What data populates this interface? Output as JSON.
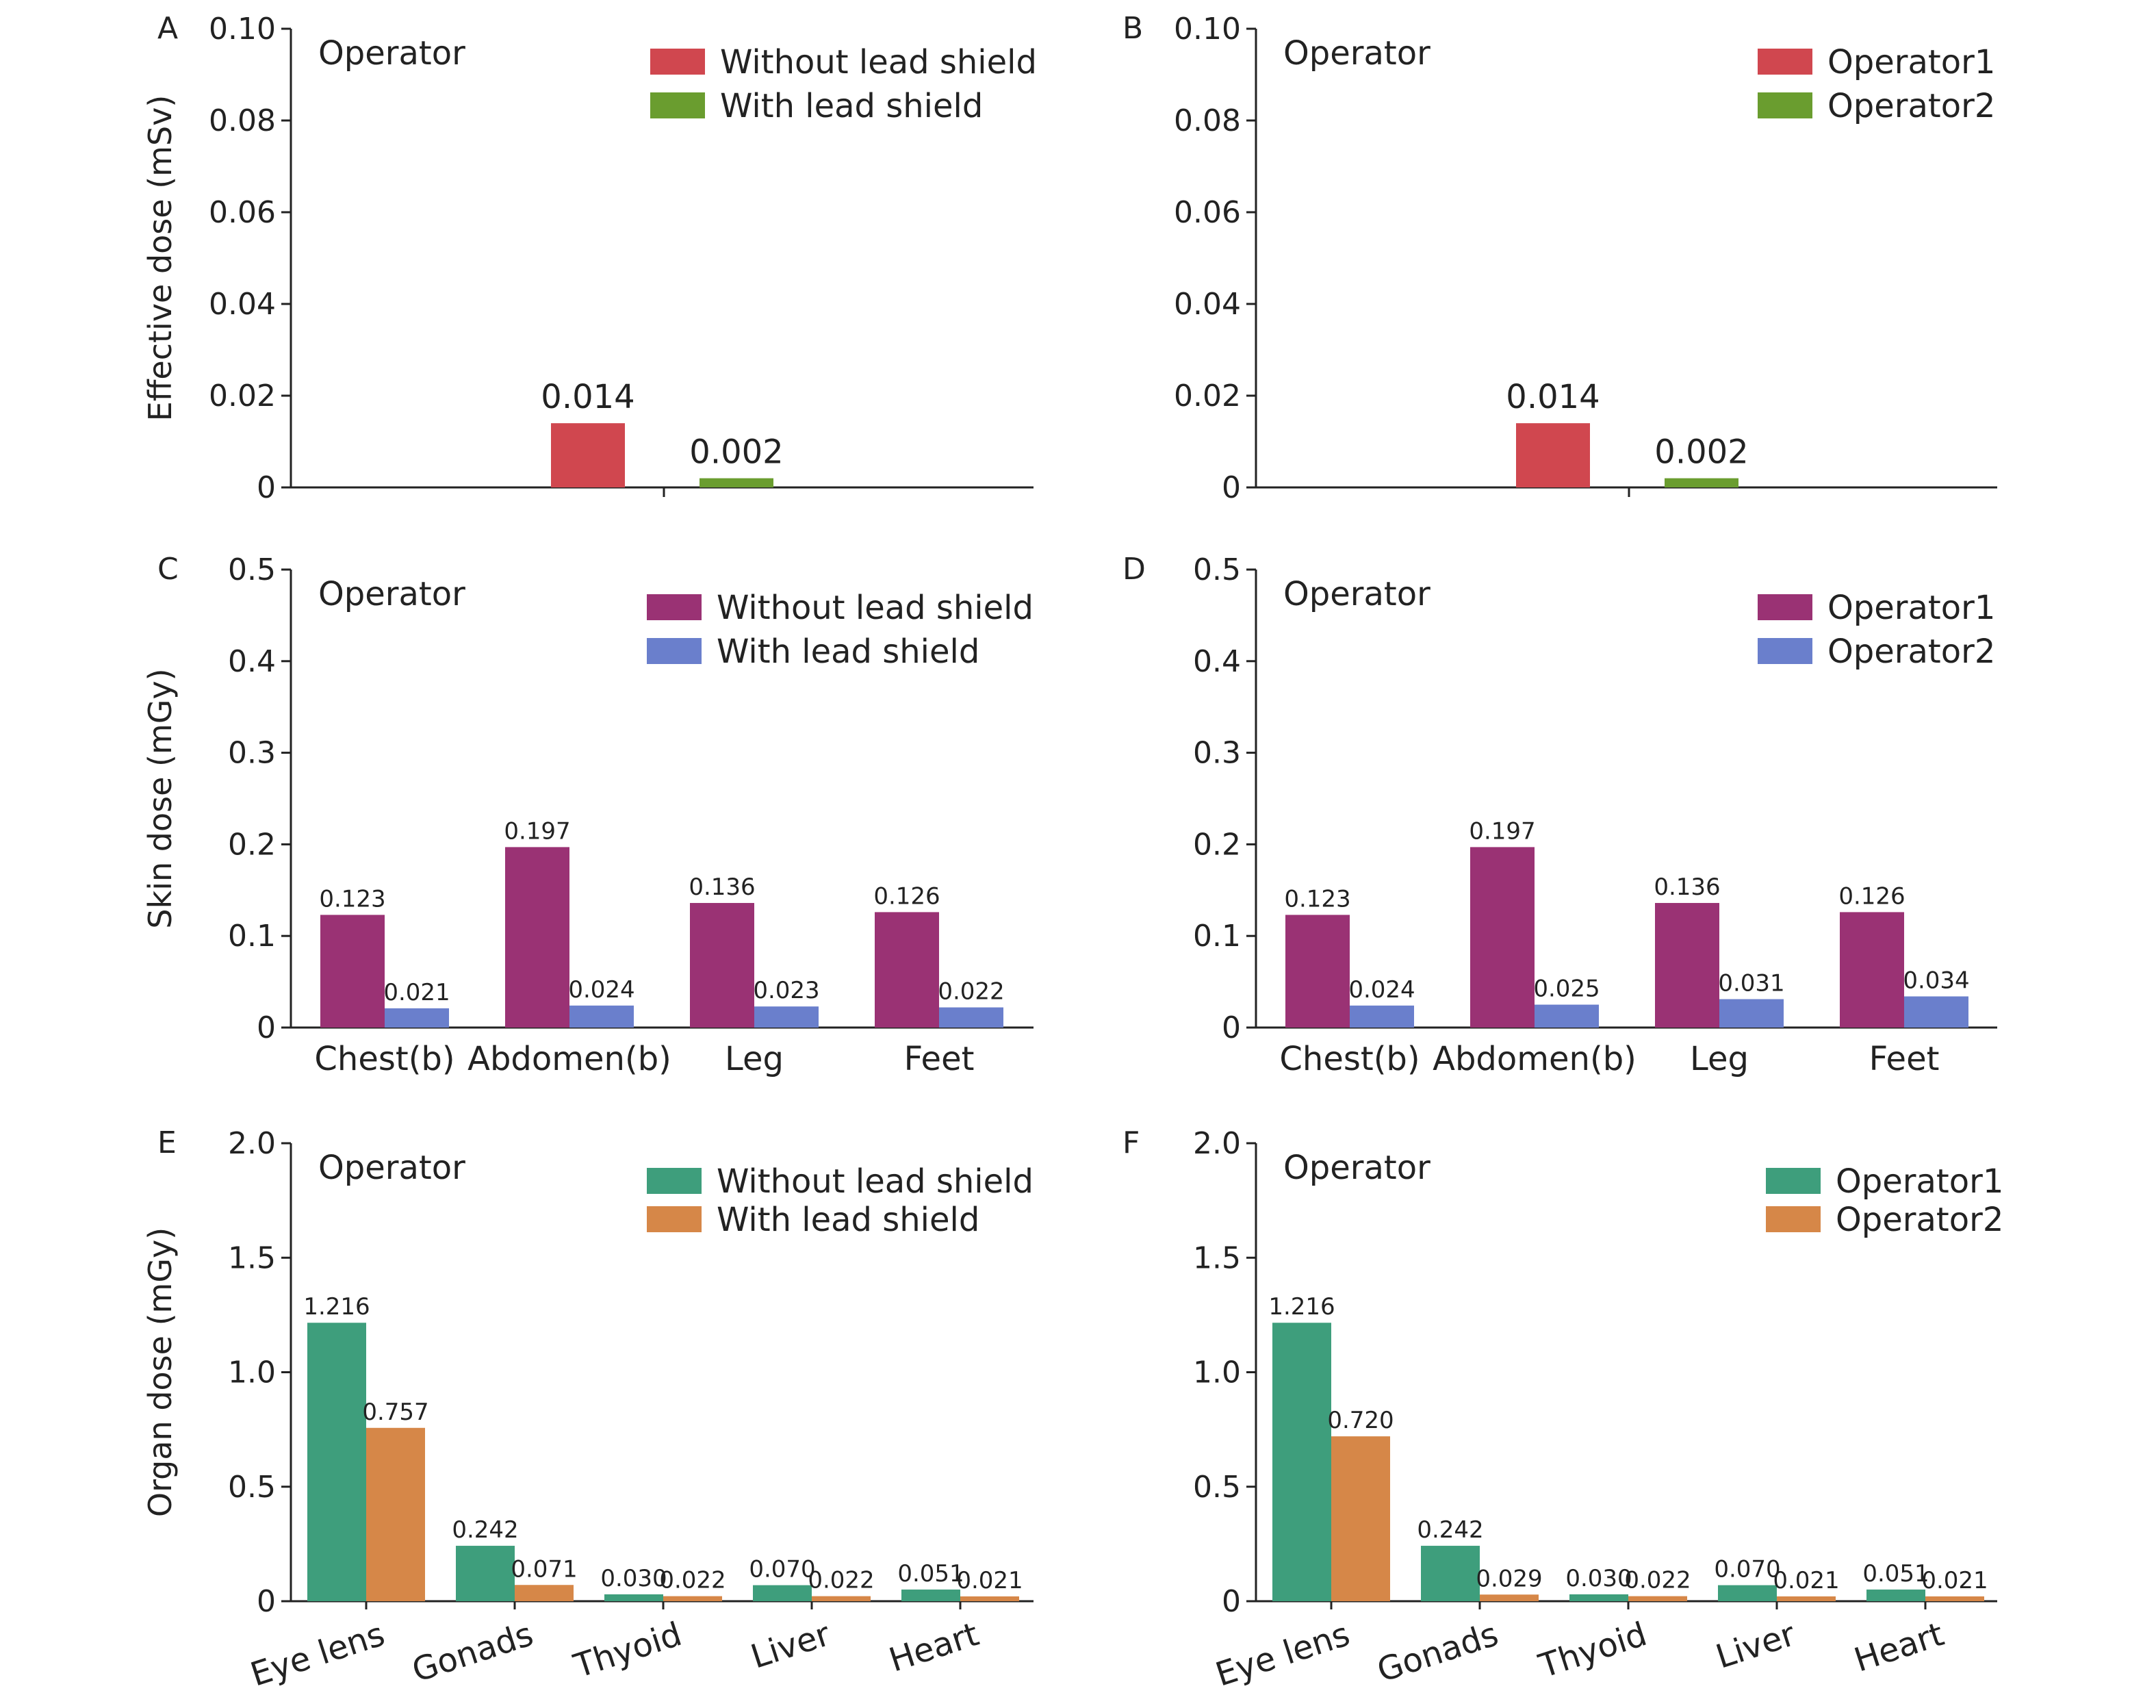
{
  "chart_data": [
    {
      "panel": "A",
      "type": "bar",
      "corner_text": "Operator",
      "ylabel": "Effective dose (mSv)",
      "ylim": [
        0,
        0.1
      ],
      "yticks": [
        "0",
        "0.02",
        "0.04",
        "0.06",
        "0.08",
        "0.10"
      ],
      "categories": [
        ""
      ],
      "series": [
        {
          "name": "Without lead shield",
          "color": "#d0474f",
          "values": [
            0.014
          ],
          "labels": [
            "0.014"
          ]
        },
        {
          "name": "With lead shield",
          "color": "#6a9d2f",
          "values": [
            0.002
          ],
          "labels": [
            "0.002"
          ]
        }
      ]
    },
    {
      "panel": "B",
      "type": "bar",
      "corner_text": "Operator",
      "ylabel": "",
      "ylim": [
        0,
        0.1
      ],
      "yticks": [
        "0",
        "0.02",
        "0.04",
        "0.06",
        "0.08",
        "0.10"
      ],
      "categories": [
        ""
      ],
      "series": [
        {
          "name": "Operator1",
          "color": "#d0474f",
          "values": [
            0.014
          ],
          "labels": [
            "0.014"
          ]
        },
        {
          "name": "Operator2",
          "color": "#6a9d2f",
          "values": [
            0.002
          ],
          "labels": [
            "0.002"
          ]
        }
      ]
    },
    {
      "panel": "C",
      "type": "bar",
      "corner_text": "Operator",
      "ylabel": "Skin dose (mGy)",
      "ylim": [
        0,
        0.5
      ],
      "yticks": [
        "0",
        "0.1",
        "0.2",
        "0.3",
        "0.4",
        "0.5"
      ],
      "categories": [
        "Chest(b)",
        "Abdomen(b)",
        "Leg",
        "Feet"
      ],
      "series": [
        {
          "name": "Without lead shield",
          "color": "#9a3274",
          "values": [
            0.123,
            0.197,
            0.136,
            0.126
          ],
          "labels": [
            "0.123",
            "0.197",
            "0.136",
            "0.126"
          ]
        },
        {
          "name": "With lead shield",
          "color": "#6a7fcc",
          "values": [
            0.021,
            0.024,
            0.023,
            0.022
          ],
          "labels": [
            "0.021",
            "0.024",
            "0.023",
            "0.022"
          ]
        }
      ]
    },
    {
      "panel": "D",
      "type": "bar",
      "corner_text": "Operator",
      "ylabel": "",
      "ylim": [
        0,
        0.5
      ],
      "yticks": [
        "0",
        "0.1",
        "0.2",
        "0.3",
        "0.4",
        "0.5"
      ],
      "categories": [
        "Chest(b)",
        "Abdomen(b)",
        "Leg",
        "Feet"
      ],
      "series": [
        {
          "name": "Operator1",
          "color": "#9a3274",
          "values": [
            0.123,
            0.197,
            0.136,
            0.126
          ],
          "labels": [
            "0.123",
            "0.197",
            "0.136",
            "0.126"
          ]
        },
        {
          "name": "Operator2",
          "color": "#6a7fcc",
          "values": [
            0.024,
            0.025,
            0.031,
            0.034
          ],
          "labels": [
            "0.024",
            "0.025",
            "0.031",
            "0.034"
          ]
        }
      ]
    },
    {
      "panel": "E",
      "type": "bar",
      "corner_text": "Operator",
      "ylabel": "Organ dose (mGy)",
      "ylim": [
        0,
        2.0
      ],
      "yticks": [
        "0",
        "0.5",
        "1.0",
        "1.5",
        "2.0"
      ],
      "categories": [
        "Eye lens",
        "Gonads",
        "Thyoid",
        "Liver",
        "Heart"
      ],
      "series": [
        {
          "name": "Without lead shield",
          "color": "#3e9e7c",
          "values": [
            1.216,
            0.242,
            0.03,
            0.07,
            0.051
          ],
          "labels": [
            "1.216",
            "0.242",
            "0.030",
            "0.070",
            "0.051"
          ]
        },
        {
          "name": "With lead shield",
          "color": "#d68748",
          "values": [
            0.757,
            0.071,
            0.022,
            0.022,
            0.021
          ],
          "labels": [
            "0.757",
            "0.071",
            "0.022",
            "0.022",
            "0.021"
          ]
        }
      ]
    },
    {
      "panel": "F",
      "type": "bar",
      "corner_text": "Operator",
      "ylabel": "",
      "ylim": [
        0,
        2.0
      ],
      "yticks": [
        "0",
        "0.5",
        "1.0",
        "1.5",
        "2.0"
      ],
      "categories": [
        "Eye lens",
        "Gonads",
        "Thyoid",
        "Liver",
        "Heart"
      ],
      "series": [
        {
          "name": "Operator1",
          "color": "#3e9e7c",
          "values": [
            1.216,
            0.242,
            0.03,
            0.07,
            0.051
          ],
          "labels": [
            "1.216",
            "0.242",
            "0.030",
            "0.070",
            "0.051"
          ]
        },
        {
          "name": "Operator2",
          "color": "#d68748",
          "values": [
            0.72,
            0.029,
            0.022,
            0.021,
            0.021
          ],
          "labels": [
            "0.720",
            "0.029",
            "0.022",
            "0.021",
            "0.021"
          ]
        }
      ]
    }
  ]
}
